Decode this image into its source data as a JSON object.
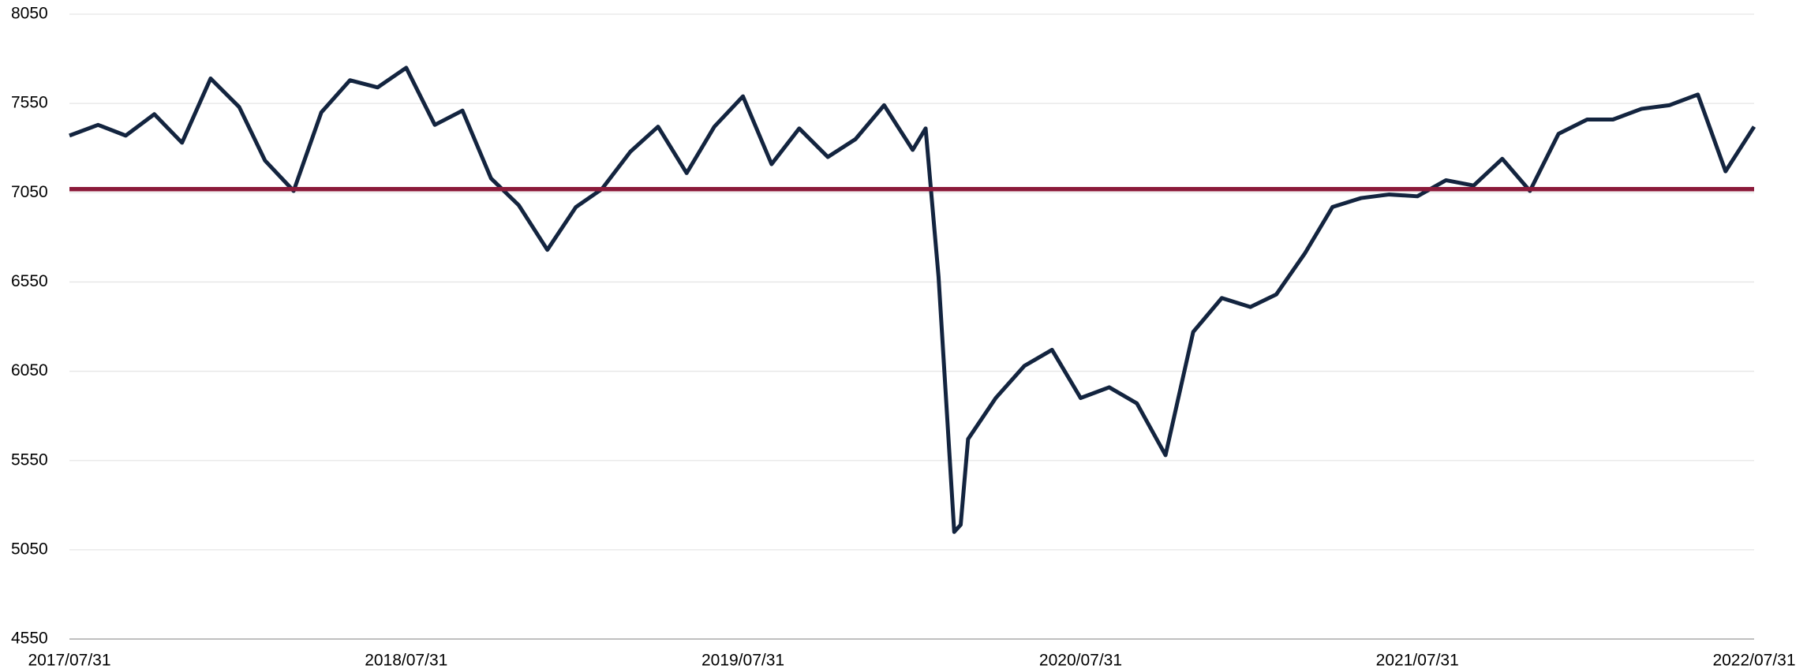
{
  "chart_data": {
    "type": "line",
    "x": [
      "2017/07/31",
      "2017/08/31",
      "2017/09/30",
      "2017/10/31",
      "2017/11/30",
      "2017/12/31",
      "2018/01/31",
      "2018/02/28",
      "2018/03/31",
      "2018/04/30",
      "2018/05/31",
      "2018/06/30",
      "2018/07/31",
      "2018/08/31",
      "2018/09/30",
      "2018/10/31",
      "2018/11/30",
      "2018/12/31",
      "2019/01/31",
      "2019/02/28",
      "2019/03/31",
      "2019/04/30",
      "2019/05/31",
      "2019/06/30",
      "2019/07/31",
      "2019/08/31",
      "2019/09/30",
      "2019/10/31",
      "2019/11/30",
      "2019/12/31",
      "2020/01/31",
      "2020/02/14",
      "2020/02/28",
      "2020/03/16",
      "2020/03/23",
      "2020/03/31",
      "2020/04/30",
      "2020/05/31",
      "2020/06/30",
      "2020/07/31",
      "2020/08/31",
      "2020/09/30",
      "2020/10/31",
      "2020/11/30",
      "2020/12/31",
      "2021/01/31",
      "2021/02/28",
      "2021/03/31",
      "2021/04/30",
      "2021/05/31",
      "2021/06/30",
      "2021/07/31",
      "2021/08/31",
      "2021/09/30",
      "2021/10/31",
      "2021/11/30",
      "2021/12/31",
      "2022/01/31",
      "2022/02/28",
      "2022/03/31",
      "2022/04/30",
      "2022/05/31",
      "2022/06/30",
      "2022/07/31"
    ],
    "series": [
      {
        "color": "#13243f",
        "values": [
          7370,
          7430,
          7370,
          7490,
          7330,
          7690,
          7530,
          7230,
          7060,
          7500,
          7680,
          7640,
          7750,
          7430,
          7510,
          7130,
          6980,
          6730,
          6970,
          7070,
          7280,
          7420,
          7160,
          7420,
          7590,
          7210,
          7410,
          7250,
          7350,
          7540,
          7290,
          7410,
          6580,
          5150,
          5190,
          5670,
          5900,
          6080,
          6170,
          5900,
          5960,
          5870,
          5580,
          6270,
          6460,
          6410,
          6480,
          6710,
          6970,
          7020,
          7040,
          7030,
          7120,
          7090,
          7240,
          7060,
          7380,
          7460,
          7460,
          7520,
          7540,
          7600,
          7170,
          7420
        ]
      }
    ],
    "reference_line": {
      "value": 7070,
      "color": "#8b1a3a"
    },
    "xlim": [
      "2017/07/31",
      "2022/07/31"
    ],
    "xticks": [
      "2017/07/31",
      "2018/07/31",
      "2019/07/31",
      "2020/07/31",
      "2021/07/31",
      "2022/07/31"
    ],
    "ylim": [
      4550,
      8050
    ],
    "yticks": [
      4550,
      5050,
      5550,
      6050,
      6550,
      7050,
      7550,
      8050
    ],
    "grid": true
  }
}
